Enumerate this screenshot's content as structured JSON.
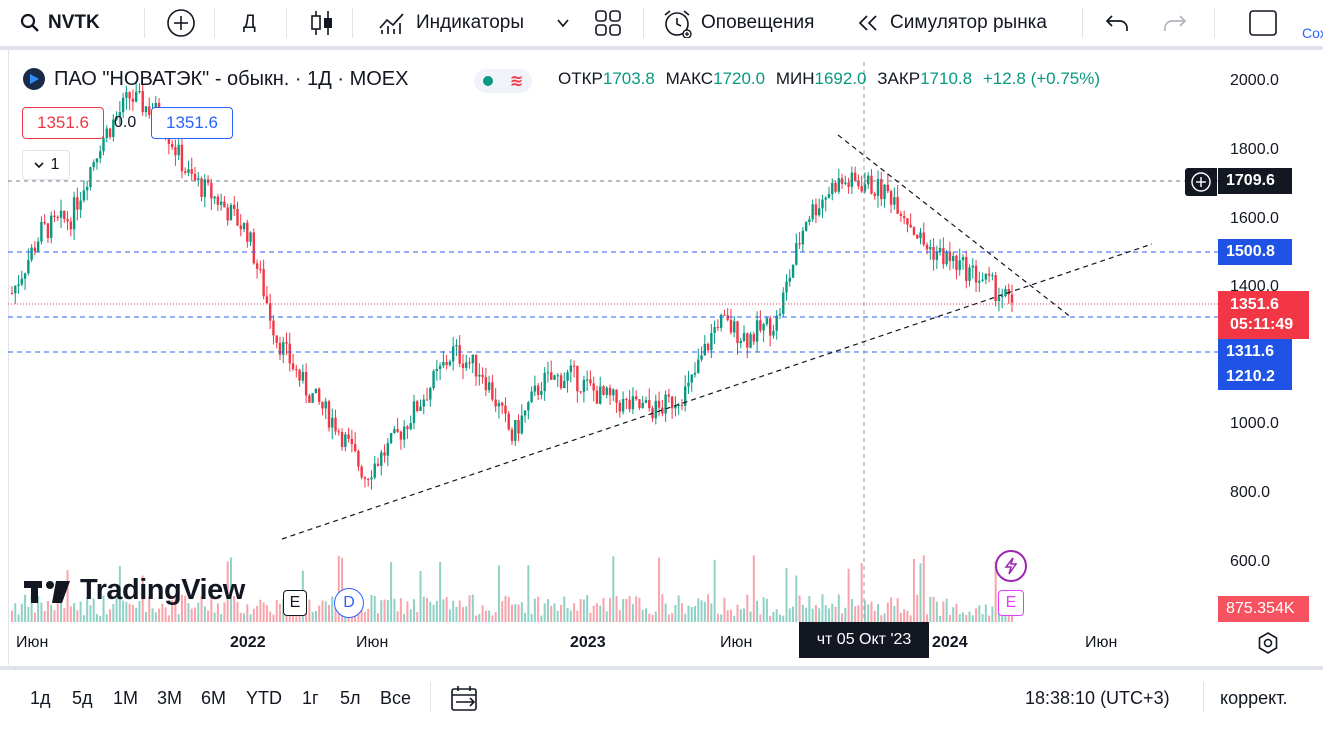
{
  "toolbar": {
    "symbol": "NVTK",
    "interval": "Д",
    "indicators_label": "Индикаторы",
    "alerts_label": "Оповещения",
    "simulator_label": "Симулятор рынка",
    "save_label": "Сох"
  },
  "legend": {
    "title": "ПАО \"НОВАТЭК\" - обыкн. · 1Д · MOEX",
    "open_key": "ОТКР",
    "open": "1703.8",
    "high_key": "МАКС",
    "high": "1720.0",
    "low_key": "МИН",
    "low": "1692.0",
    "close_key": "ЗАКР",
    "close": "1710.8",
    "change": "+12.8 (+0.75%)",
    "bid": "1351.6",
    "spread": "0.0",
    "ask": "1351.6",
    "indicators_count": "1"
  },
  "price_axis": {
    "ticks": [
      "2000.0",
      "1800.0",
      "1600.0",
      "1400.0",
      "1000.0",
      "800.0",
      "600.0"
    ],
    "crosshair_price": "1709.6",
    "level_1500": "1500.8",
    "last_price": "1351.6",
    "countdown": "05:11:49",
    "level_1311": "1311.6",
    "level_1210": "1210.2",
    "volume": "875.354K"
  },
  "time_axis": {
    "labels": [
      "Июн",
      "2022",
      "Июн",
      "2023",
      "Июн",
      "2024",
      "Июн"
    ],
    "crosshair_date": "чт 05 Окт '23"
  },
  "markers": {
    "earnings_1": "E",
    "dividend": "D",
    "earnings_2": "E"
  },
  "watermark": "TradingView",
  "bottom": {
    "ranges": [
      "1д",
      "5д",
      "1М",
      "3М",
      "6М",
      "YTD",
      "1г",
      "5л",
      "Все"
    ],
    "clock": "18:38:10 (UTC+3)",
    "adjust": "коррект."
  },
  "colors": {
    "up": "#089981",
    "down": "#f23645",
    "blue": "#2962ff",
    "blue_label": "#1e53e5",
    "red_label": "#f23645"
  },
  "chart_data": {
    "type": "candlestick",
    "symbol": "NVTK",
    "ylim": [
      500,
      2050
    ],
    "x": [
      "2021-05",
      "2021-06",
      "2021-07",
      "2021-08",
      "2021-09",
      "2021-10",
      "2021-11",
      "2021-12",
      "2022-01",
      "2022-02",
      "2022-03",
      "2022-04",
      "2022-05",
      "2022-06",
      "2022-07",
      "2022-08",
      "2022-09",
      "2022-10",
      "2022-11",
      "2022-12",
      "2023-01",
      "2023-02",
      "2023-03",
      "2023-04",
      "2023-05",
      "2023-06",
      "2023-07",
      "2023-08",
      "2023-09",
      "2023-10",
      "2023-11",
      "2023-12",
      "2024-01",
      "2024-02",
      "2024-03"
    ],
    "close": [
      1380,
      1560,
      1600,
      1820,
      1950,
      1900,
      1720,
      1650,
      1560,
      1250,
      1100,
      1000,
      850,
      950,
      1080,
      1210,
      1150,
      960,
      1120,
      1140,
      1080,
      1050,
      1040,
      1100,
      1300,
      1250,
      1300,
      1600,
      1700,
      1700,
      1660,
      1520,
      1470,
      1420,
      1351.6
    ],
    "horizontal_levels": [
      1709.6,
      1500.8,
      1351.6,
      1311.6,
      1210.2
    ],
    "trendlines": [
      {
        "from": [
          "2022-02",
          660
        ],
        "to": [
          "2024-04",
          1520
        ]
      },
      {
        "from": [
          "2023-09",
          1790
        ],
        "to": [
          "2024-04",
          1300
        ]
      }
    ]
  }
}
